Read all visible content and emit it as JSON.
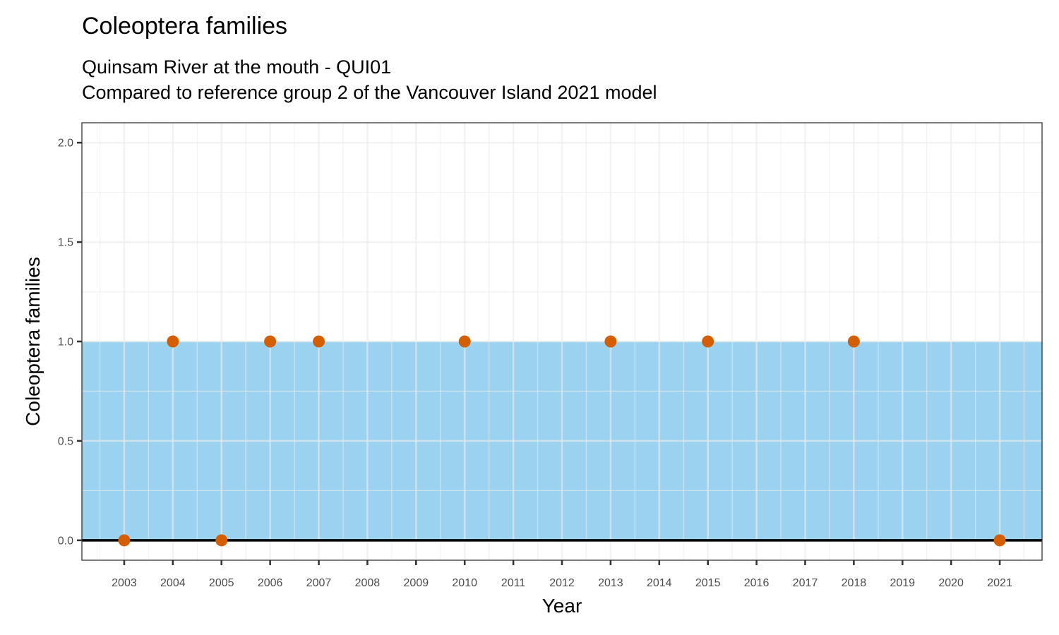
{
  "chart_data": {
    "type": "scatter",
    "title": "Coleoptera families",
    "subtitle": [
      "Quinsam River at the mouth - QUI01",
      "Compared to reference group 2 of the Vancouver Island 2021 model"
    ],
    "xlabel": "Year",
    "ylabel": "Coleoptera families",
    "x_ticks": [
      "2003",
      "2004",
      "2005",
      "2006",
      "2007",
      "2008",
      "2009",
      "2010",
      "2011",
      "2012",
      "2013",
      "2014",
      "2015",
      "2016",
      "2017",
      "2018",
      "2019",
      "2020",
      "2021"
    ],
    "y_ticks": [
      "0.0",
      "0.5",
      "1.0",
      "1.5",
      "2.0"
    ],
    "xlim": [
      2002.13,
      2021.87
    ],
    "ylim": [
      -0.1,
      2.1
    ],
    "reference_band": {
      "ymin": 0,
      "ymax": 1,
      "color": "#9bd2f0"
    },
    "baseline_y": 0,
    "grid": true,
    "point_color": "#d55e00",
    "points": [
      {
        "x": 2003,
        "y": 0
      },
      {
        "x": 2004,
        "y": 1
      },
      {
        "x": 2005,
        "y": 0
      },
      {
        "x": 2006,
        "y": 1
      },
      {
        "x": 2007,
        "y": 1
      },
      {
        "x": 2010,
        "y": 1
      },
      {
        "x": 2013,
        "y": 1
      },
      {
        "x": 2015,
        "y": 1
      },
      {
        "x": 2018,
        "y": 1
      },
      {
        "x": 2021,
        "y": 0
      }
    ]
  }
}
